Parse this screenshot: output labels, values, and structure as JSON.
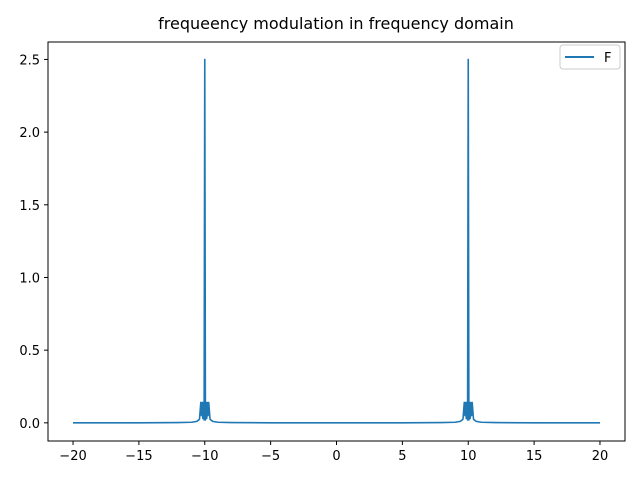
{
  "chart_data": {
    "type": "line",
    "title": "frequeency modulation in frequency domain",
    "xlabel": "",
    "ylabel": "",
    "xlim": [
      -21.9,
      21.9
    ],
    "ylim": [
      -0.125,
      2.62
    ],
    "grid": false,
    "legend_position": "top-right",
    "x_ticks": [
      -20,
      -15,
      -10,
      -5,
      0,
      5,
      10,
      15,
      20
    ],
    "x_tick_labels": [
      "−20",
      "−15",
      "−10",
      "−5",
      "0",
      "5",
      "10",
      "15",
      "20"
    ],
    "y_ticks": [
      0.0,
      0.5,
      1.0,
      1.5,
      2.0,
      2.5
    ],
    "y_tick_labels": [
      "0.0",
      "0.5",
      "1.0",
      "1.5",
      "2.0",
      "2.5"
    ],
    "series": [
      {
        "name": "F",
        "color": "#1f77b4",
        "x": [
          -20,
          -15,
          -12,
          -11,
          -10.6,
          -10.4,
          -10.3,
          -10.25,
          -10.2,
          -10.15,
          -10.1,
          -10.05,
          -10,
          -9.95,
          -9.9,
          -9.85,
          -9.8,
          -9.75,
          -9.7,
          -9.6,
          -9.4,
          -9,
          -8,
          -5,
          0,
          5,
          8,
          9,
          9.4,
          9.6,
          9.7,
          9.75,
          9.8,
          9.85,
          9.9,
          9.95,
          10,
          10.05,
          10.1,
          10.15,
          10.2,
          10.25,
          10.3,
          10.4,
          10.6,
          11,
          12,
          15,
          20
        ],
        "values": [
          0.0,
          0.0,
          0.002,
          0.004,
          0.01,
          0.025,
          0.14,
          0.05,
          0.14,
          0.03,
          0.14,
          0.02,
          2.5,
          0.02,
          0.14,
          0.03,
          0.14,
          0.05,
          0.14,
          0.025,
          0.01,
          0.004,
          0.002,
          0.0,
          0.0,
          0.0,
          0.002,
          0.004,
          0.01,
          0.025,
          0.14,
          0.05,
          0.14,
          0.03,
          0.14,
          0.02,
          2.5,
          0.02,
          0.14,
          0.03,
          0.14,
          0.05,
          0.14,
          0.025,
          0.01,
          0.004,
          0.002,
          0.0,
          0.0
        ]
      }
    ]
  }
}
